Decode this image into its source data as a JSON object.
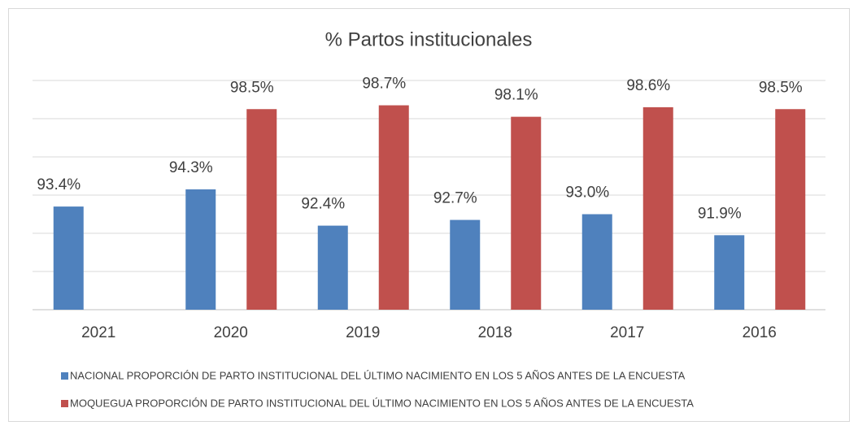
{
  "chart_data": {
    "type": "bar",
    "title": "% Partos institucionales",
    "categories": [
      "2021",
      "2020",
      "2019",
      "2018",
      "2017",
      "2016"
    ],
    "series": [
      {
        "name": "NACIONAL PROPORCIÓN DE PARTO INSTITUCIONAL  DEL ÚLTIMO NACIMIENTO EN LOS 5 AÑOS ANTES DE LA ENCUESTA",
        "color": "#4f81bd",
        "values": [
          93.4,
          94.3,
          92.4,
          92.7,
          93.0,
          91.9
        ],
        "value_labels": [
          "93.4%",
          "94.3%",
          "92.4%",
          "92.7%",
          "93.0%",
          "91.9%"
        ]
      },
      {
        "name": "MOQUEGUA PROPORCIÓN DE PARTO INSTITUCIONAL  DEL ÚLTIMO NACIMIENTO EN LOS 5 AÑOS ANTES DE LA ENCUESTA",
        "color": "#c0504d",
        "values": [
          null,
          98.5,
          98.7,
          98.1,
          98.6,
          98.5
        ],
        "value_labels": [
          null,
          "98.5%",
          "98.7%",
          "98.1%",
          "98.6%",
          "98.5%"
        ]
      }
    ],
    "ylim": [
      88,
      100
    ],
    "yticks": [
      88,
      90,
      92,
      94,
      96,
      98,
      100
    ],
    "grid": true,
    "legend": "bottom"
  }
}
